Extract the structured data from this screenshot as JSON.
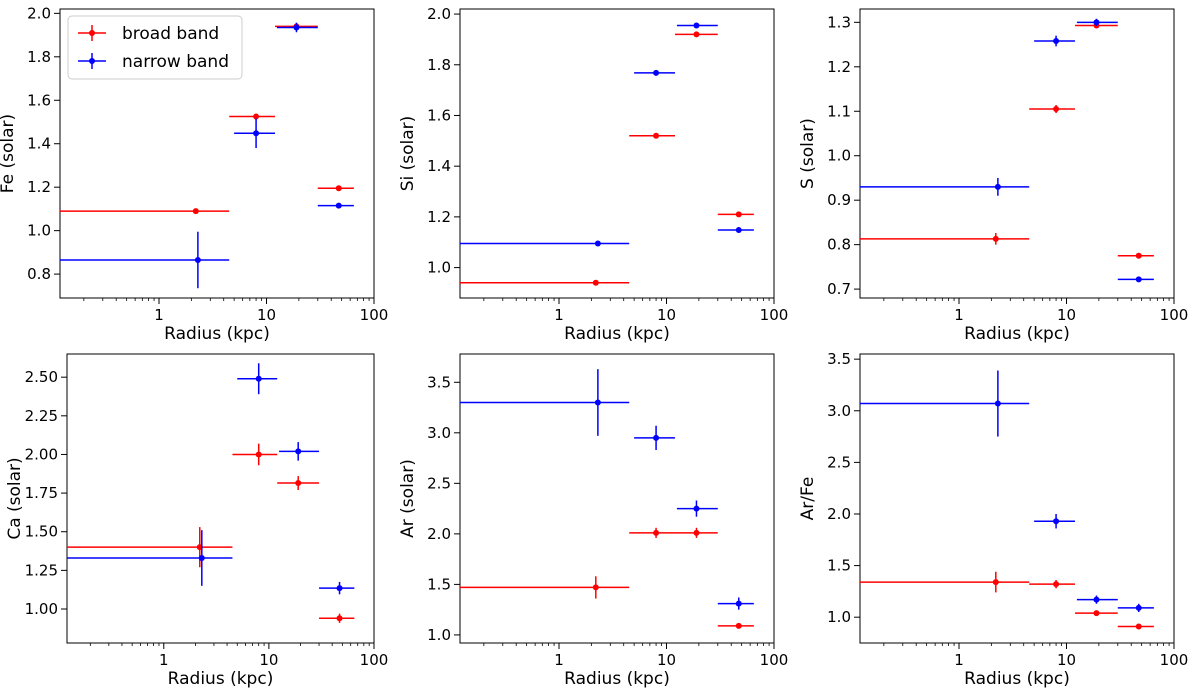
{
  "chart_data": [
    {
      "type": "scatter",
      "xlabel": "Radius (kpc)",
      "ylabel": "Fe (solar)",
      "xscale": "log",
      "xlim": [
        0.12,
        100
      ],
      "ylim": [
        0.69,
        2.02
      ],
      "xticks": [
        1,
        10,
        100
      ],
      "xtick_labels": [
        "1",
        "10",
        "100"
      ],
      "yticks": [
        0.8,
        1.0,
        1.2,
        1.4,
        1.6,
        1.8,
        2.0
      ],
      "ytick_labels": [
        "0.8",
        "1.0",
        "1.2",
        "1.4",
        "1.6",
        "1.8",
        "2.0"
      ],
      "legend": {
        "position": "top-left",
        "entries": [
          "broad band",
          "narrow band"
        ]
      },
      "series": [
        {
          "name": "broad band",
          "color": "#ff0000",
          "points": [
            {
              "x": 2.2,
              "xlo": 0.12,
              "xhi": 4.5,
              "y": 1.09,
              "yerr": 0.005
            },
            {
              "x": 8.0,
              "xlo": 4.5,
              "xhi": 12.0,
              "y": 1.525,
              "yerr": 0.008
            },
            {
              "x": 19.0,
              "xlo": 12.0,
              "xhi": 30.0,
              "y": 1.94,
              "yerr": 0.008
            },
            {
              "x": 47.0,
              "xlo": 30.0,
              "xhi": 65.0,
              "y": 1.195,
              "yerr": 0.005
            }
          ]
        },
        {
          "name": "narrow band",
          "color": "#0000ff",
          "points": [
            {
              "x": 2.3,
              "xlo": 0.12,
              "xhi": 4.5,
              "y": 0.865,
              "yerr": 0.13
            },
            {
              "x": 8.0,
              "xlo": 5.0,
              "xhi": 12.0,
              "y": 1.448,
              "yerr": 0.068
            },
            {
              "x": 19.0,
              "xlo": 12.5,
              "xhi": 30.0,
              "y": 1.935,
              "yerr": 0.022
            },
            {
              "x": 47.0,
              "xlo": 30.0,
              "xhi": 65.0,
              "y": 1.115,
              "yerr": 0.008
            }
          ]
        }
      ]
    },
    {
      "type": "scatter",
      "xlabel": "Radius (kpc)",
      "ylabel": "Si (solar)",
      "xscale": "log",
      "xlim": [
        0.12,
        100
      ],
      "ylim": [
        0.88,
        2.02
      ],
      "xticks": [
        1,
        10,
        100
      ],
      "xtick_labels": [
        "1",
        "10",
        "100"
      ],
      "yticks": [
        1.0,
        1.2,
        1.4,
        1.6,
        1.8,
        2.0
      ],
      "ytick_labels": [
        "1.0",
        "1.2",
        "1.4",
        "1.6",
        "1.8",
        "2.0"
      ],
      "series": [
        {
          "name": "broad band",
          "color": "#ff0000",
          "points": [
            {
              "x": 2.2,
              "xlo": 0.12,
              "xhi": 4.5,
              "y": 0.94,
              "yerr": 0.004
            },
            {
              "x": 8.0,
              "xlo": 4.5,
              "xhi": 12.0,
              "y": 1.52,
              "yerr": 0.005
            },
            {
              "x": 19.0,
              "xlo": 12.0,
              "xhi": 30.0,
              "y": 1.92,
              "yerr": 0.008
            },
            {
              "x": 47.0,
              "xlo": 30.0,
              "xhi": 65.0,
              "y": 1.21,
              "yerr": 0.005
            }
          ]
        },
        {
          "name": "narrow band",
          "color": "#0000ff",
          "points": [
            {
              "x": 2.3,
              "xlo": 0.12,
              "xhi": 4.5,
              "y": 1.095,
              "yerr": 0.01
            },
            {
              "x": 8.0,
              "xlo": 5.0,
              "xhi": 12.0,
              "y": 1.768,
              "yerr": 0.008
            },
            {
              "x": 19.0,
              "xlo": 12.5,
              "xhi": 30.0,
              "y": 1.955,
              "yerr": 0.006
            },
            {
              "x": 47.0,
              "xlo": 30.0,
              "xhi": 65.0,
              "y": 1.148,
              "yerr": 0.005
            }
          ]
        }
      ]
    },
    {
      "type": "scatter",
      "xlabel": "Radius (kpc)",
      "ylabel": "S (solar)",
      "xscale": "log",
      "xlim": [
        0.12,
        100
      ],
      "ylim": [
        0.68,
        1.33
      ],
      "xticks": [
        1,
        10,
        100
      ],
      "xtick_labels": [
        "1",
        "10",
        "100"
      ],
      "yticks": [
        0.7,
        0.8,
        0.9,
        1.0,
        1.1,
        1.2,
        1.3
      ],
      "ytick_labels": [
        "0.7",
        "0.8",
        "0.9",
        "1.0",
        "1.1",
        "1.2",
        "1.3"
      ],
      "series": [
        {
          "name": "broad band",
          "color": "#ff0000",
          "points": [
            {
              "x": 2.2,
              "xlo": 0.12,
              "xhi": 4.5,
              "y": 0.813,
              "yerr": 0.013
            },
            {
              "x": 8.0,
              "xlo": 4.5,
              "xhi": 12.0,
              "y": 1.105,
              "yerr": 0.009
            },
            {
              "x": 19.0,
              "xlo": 12.0,
              "xhi": 30.0,
              "y": 1.293,
              "yerr": 0.006
            },
            {
              "x": 47.0,
              "xlo": 30.0,
              "xhi": 65.0,
              "y": 0.775,
              "yerr": 0.004
            }
          ]
        },
        {
          "name": "narrow band",
          "color": "#0000ff",
          "points": [
            {
              "x": 2.3,
              "xlo": 0.12,
              "xhi": 4.5,
              "y": 0.93,
              "yerr": 0.02
            },
            {
              "x": 8.0,
              "xlo": 5.0,
              "xhi": 12.0,
              "y": 1.258,
              "yerr": 0.012
            },
            {
              "x": 19.0,
              "xlo": 12.5,
              "xhi": 30.0,
              "y": 1.3,
              "yerr": 0.008
            },
            {
              "x": 47.0,
              "xlo": 30.0,
              "xhi": 65.0,
              "y": 0.722,
              "yerr": 0.005
            }
          ]
        }
      ]
    },
    {
      "type": "scatter",
      "xlabel": "Radius (kpc)",
      "ylabel": "Ca (solar)",
      "xscale": "log",
      "xlim": [
        0.12,
        100
      ],
      "ylim": [
        0.78,
        2.65
      ],
      "xticks": [
        1,
        10,
        100
      ],
      "xtick_labels": [
        "1",
        "10",
        "100"
      ],
      "yticks": [
        1.0,
        1.25,
        1.5,
        1.75,
        2.0,
        2.25,
        2.5
      ],
      "ytick_labels": [
        "1.00",
        "1.25",
        "1.50",
        "1.75",
        "2.00",
        "2.25",
        "2.50"
      ],
      "series": [
        {
          "name": "broad band",
          "color": "#ff0000",
          "points": [
            {
              "x": 2.2,
              "xlo": 0.12,
              "xhi": 4.5,
              "y": 1.4,
              "yerr": 0.13
            },
            {
              "x": 8.0,
              "xlo": 4.5,
              "xhi": 12.0,
              "y": 2.0,
              "yerr": 0.07
            },
            {
              "x": 19.0,
              "xlo": 12.0,
              "xhi": 30.0,
              "y": 1.815,
              "yerr": 0.045
            },
            {
              "x": 47.0,
              "xlo": 30.0,
              "xhi": 65.0,
              "y": 0.94,
              "yerr": 0.03
            }
          ]
        },
        {
          "name": "narrow band",
          "color": "#0000ff",
          "points": [
            {
              "x": 2.3,
              "xlo": 0.12,
              "xhi": 4.5,
              "y": 1.33,
              "yerr": 0.18
            },
            {
              "x": 8.0,
              "xlo": 5.0,
              "xhi": 12.0,
              "y": 2.49,
              "yerr": 0.1
            },
            {
              "x": 19.0,
              "xlo": 12.5,
              "xhi": 30.0,
              "y": 2.02,
              "yerr": 0.06
            },
            {
              "x": 47.0,
              "xlo": 30.0,
              "xhi": 65.0,
              "y": 1.135,
              "yerr": 0.04
            }
          ]
        }
      ]
    },
    {
      "type": "scatter",
      "xlabel": "Radius (kpc)",
      "ylabel": "Ar (solar)",
      "xscale": "log",
      "xlim": [
        0.12,
        100
      ],
      "ylim": [
        0.92,
        3.78
      ],
      "xticks": [
        1,
        10,
        100
      ],
      "xtick_labels": [
        "1",
        "10",
        "100"
      ],
      "yticks": [
        1.0,
        1.5,
        2.0,
        2.5,
        3.0,
        3.5
      ],
      "ytick_labels": [
        "1.0",
        "1.5",
        "2.0",
        "2.5",
        "3.0",
        "3.5"
      ],
      "series": [
        {
          "name": "broad band",
          "color": "#ff0000",
          "points": [
            {
              "x": 2.2,
              "xlo": 0.12,
              "xhi": 4.5,
              "y": 1.47,
              "yerr": 0.11
            },
            {
              "x": 8.0,
              "xlo": 4.5,
              "xhi": 12.0,
              "y": 2.01,
              "yerr": 0.05
            },
            {
              "x": 19.0,
              "xlo": 12.0,
              "xhi": 30.0,
              "y": 2.01,
              "yerr": 0.05
            },
            {
              "x": 47.0,
              "xlo": 30.0,
              "xhi": 65.0,
              "y": 1.09,
              "yerr": 0.025
            }
          ]
        },
        {
          "name": "narrow band",
          "color": "#0000ff",
          "points": [
            {
              "x": 2.3,
              "xlo": 0.12,
              "xhi": 4.5,
              "y": 3.3,
              "yerr": 0.33
            },
            {
              "x": 8.0,
              "xlo": 5.0,
              "xhi": 12.0,
              "y": 2.95,
              "yerr": 0.12
            },
            {
              "x": 19.0,
              "xlo": 12.5,
              "xhi": 30.0,
              "y": 2.25,
              "yerr": 0.08
            },
            {
              "x": 47.0,
              "xlo": 30.0,
              "xhi": 65.0,
              "y": 1.31,
              "yerr": 0.06
            }
          ]
        }
      ]
    },
    {
      "type": "scatter",
      "xlabel": "Radius (kpc)",
      "ylabel": "Ar/Fe",
      "xscale": "log",
      "xlim": [
        0.12,
        100
      ],
      "ylim": [
        0.75,
        3.55
      ],
      "xticks": [
        1,
        10,
        100
      ],
      "xtick_labels": [
        "1",
        "10",
        "100"
      ],
      "yticks": [
        1.0,
        1.5,
        2.0,
        2.5,
        3.0,
        3.5
      ],
      "ytick_labels": [
        "1.0",
        "1.5",
        "2.0",
        "2.5",
        "3.0",
        "3.5"
      ],
      "series": [
        {
          "name": "broad band",
          "color": "#ff0000",
          "points": [
            {
              "x": 2.2,
              "xlo": 0.12,
              "xhi": 4.5,
              "y": 1.34,
              "yerr": 0.1
            },
            {
              "x": 8.0,
              "xlo": 4.5,
              "xhi": 12.0,
              "y": 1.32,
              "yerr": 0.04
            },
            {
              "x": 19.0,
              "xlo": 12.0,
              "xhi": 30.0,
              "y": 1.04,
              "yerr": 0.02
            },
            {
              "x": 47.0,
              "xlo": 30.0,
              "xhi": 65.0,
              "y": 0.91,
              "yerr": 0.02
            }
          ]
        },
        {
          "name": "narrow band",
          "color": "#0000ff",
          "points": [
            {
              "x": 2.3,
              "xlo": 0.12,
              "xhi": 4.5,
              "y": 3.07,
              "yerr": 0.32
            },
            {
              "x": 8.0,
              "xlo": 5.0,
              "xhi": 12.0,
              "y": 1.93,
              "yerr": 0.07
            },
            {
              "x": 19.0,
              "xlo": 12.5,
              "xhi": 30.0,
              "y": 1.17,
              "yerr": 0.04
            },
            {
              "x": 47.0,
              "xlo": 30.0,
              "xhi": 65.0,
              "y": 1.09,
              "yerr": 0.04
            }
          ]
        }
      ]
    }
  ]
}
